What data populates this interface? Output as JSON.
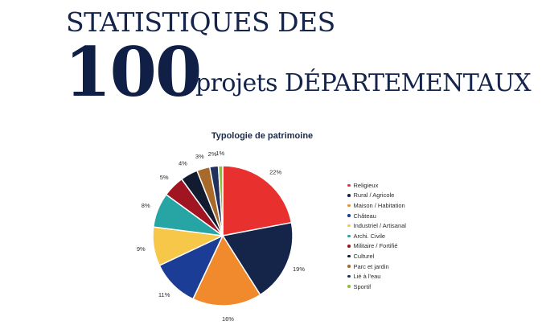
{
  "header": {
    "line1": "STATISTIQUES DES",
    "number": "100",
    "rest": "projets DÉPARTEMENTAUX"
  },
  "chart_data": {
    "type": "pie",
    "title": "Typologie de patrimoine",
    "categories": [
      "Religieux",
      "Rural / Agricole",
      "Maison / Habitation",
      "Château",
      "Industriel / Artisanal",
      "Archi. Civile",
      "Militaire / Fortifié",
      "Culturel",
      "Parc et jardin",
      "Lié à l'eau",
      "Sportif"
    ],
    "values": [
      22,
      19,
      16,
      11,
      9,
      8,
      5,
      4,
      3,
      2,
      1
    ],
    "labels": [
      "22%",
      "19%",
      "16%",
      "11%",
      "9%",
      "8%",
      "5%",
      "4%",
      "3%",
      "2%",
      "1%"
    ],
    "colors": [
      "#e8302e",
      "#15254a",
      "#f08a2c",
      "#1b3d96",
      "#f7c74a",
      "#27a4a4",
      "#a11522",
      "#121b30",
      "#a76a2a",
      "#22305e",
      "#8fbf3a"
    ],
    "legend_position": "right"
  }
}
